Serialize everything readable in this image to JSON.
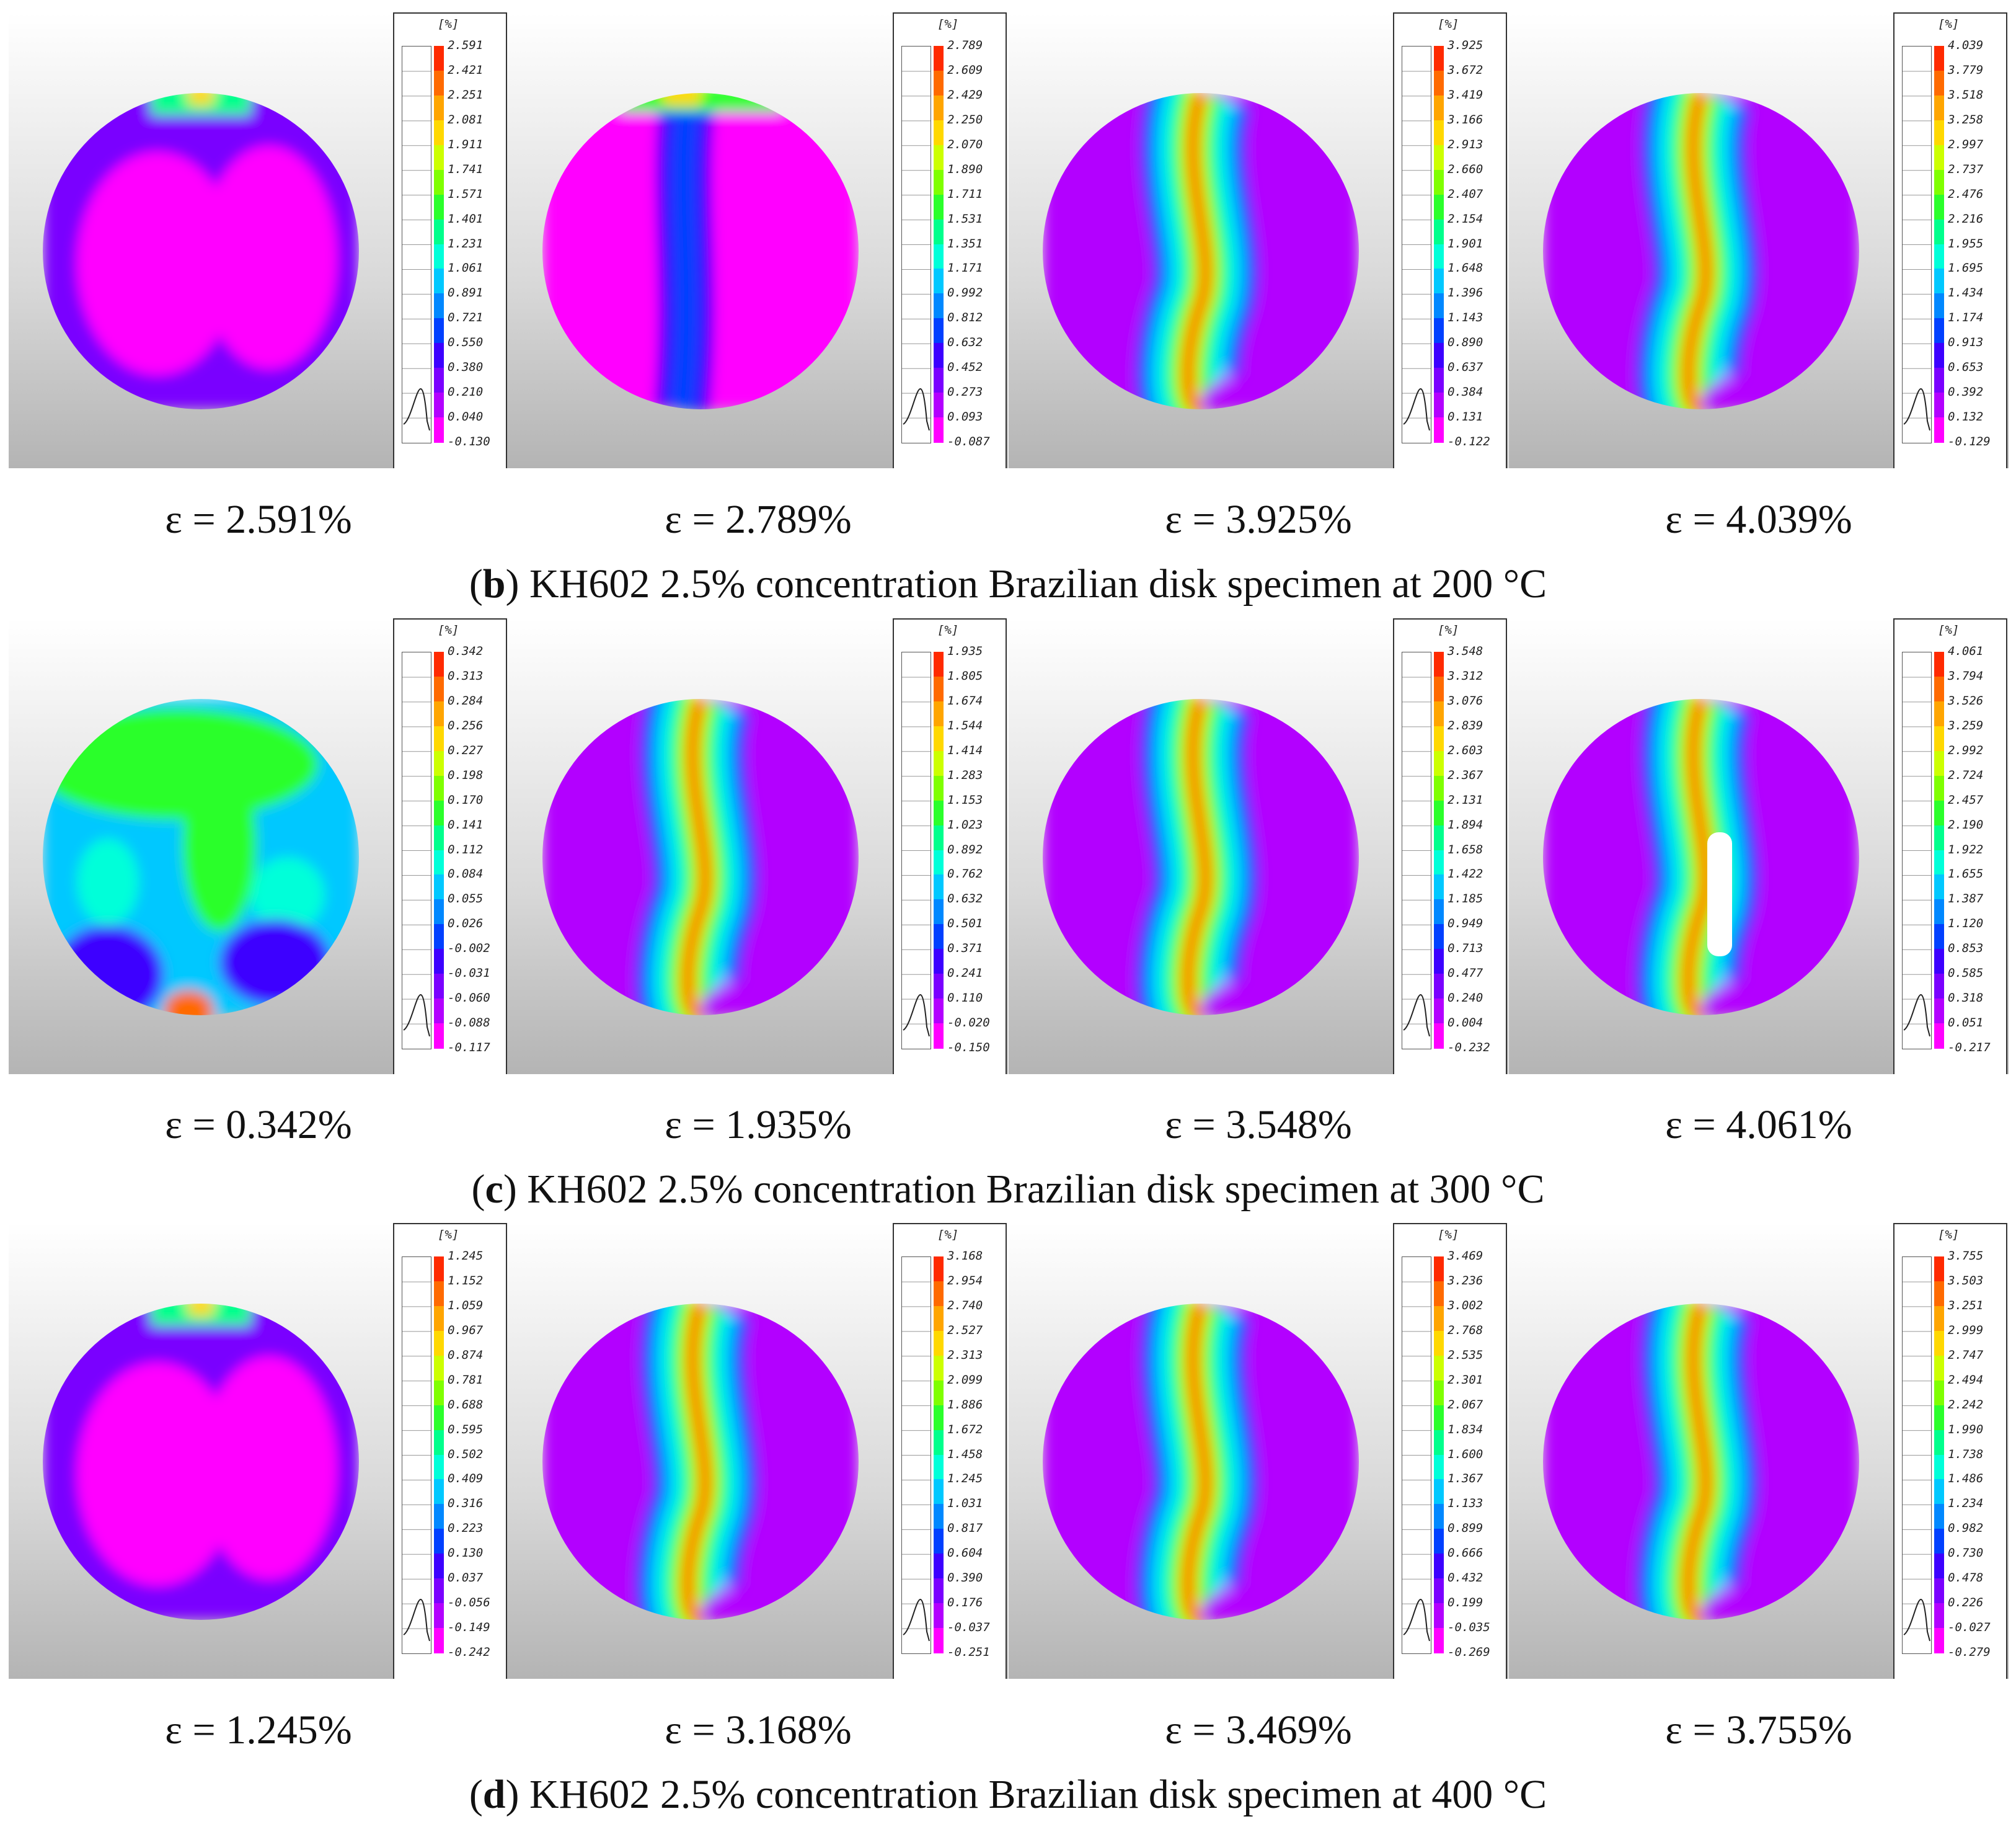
{
  "legend_colors": [
    "#ff2a00",
    "#ff6a00",
    "#ffa500",
    "#ffd800",
    "#ccff00",
    "#7fff00",
    "#2bff2b",
    "#00ff8c",
    "#00ffd9",
    "#00c8ff",
    "#0088ff",
    "#0040ff",
    "#3c00ff",
    "#7a00ff",
    "#b300ff",
    "#ff00ff"
  ],
  "rows": [
    {
      "id": "b",
      "caption_letter": "b",
      "caption_text": ") KH602 2.5% concentration Brazilian disk specimen at 200 °C",
      "panels": [
        {
          "strain_label": "ε = 2.591%",
          "unit": "[%]",
          "pattern": "low",
          "ticks": [
            "2.591",
            "2.421",
            "2.251",
            "2.081",
            "1.911",
            "1.741",
            "1.571",
            "1.401",
            "1.231",
            "1.061",
            "0.891",
            "0.721",
            "0.550",
            "0.380",
            "0.210",
            "0.040",
            "-0.130"
          ]
        },
        {
          "strain_label": "ε = 2.789%",
          "unit": "[%]",
          "pattern": "early",
          "ticks": [
            "2.789",
            "2.609",
            "2.429",
            "2.250",
            "2.070",
            "1.890",
            "1.711",
            "1.531",
            "1.351",
            "1.171",
            "0.992",
            "0.812",
            "0.632",
            "0.452",
            "0.273",
            "0.093",
            "-0.087"
          ]
        },
        {
          "strain_label": "ε = 3.925%",
          "unit": "[%]",
          "pattern": "band",
          "ticks": [
            "3.925",
            "3.672",
            "3.419",
            "3.166",
            "2.913",
            "2.660",
            "2.407",
            "2.154",
            "1.901",
            "1.648",
            "1.396",
            "1.143",
            "0.890",
            "0.637",
            "0.384",
            "0.131",
            "-0.122"
          ]
        },
        {
          "strain_label": "ε = 4.039%",
          "unit": "[%]",
          "pattern": "band",
          "ticks": [
            "4.039",
            "3.779",
            "3.518",
            "3.258",
            "2.997",
            "2.737",
            "2.476",
            "2.216",
            "1.955",
            "1.695",
            "1.434",
            "1.174",
            "0.913",
            "0.653",
            "0.392",
            "0.132",
            "-0.129"
          ]
        }
      ]
    },
    {
      "id": "c",
      "caption_letter": "c",
      "caption_text": ") KH602 2.5% concentration Brazilian disk specimen at 300 °C",
      "panels": [
        {
          "strain_label": "ε = 0.342%",
          "unit": "[%]",
          "pattern": "noisy",
          "ticks": [
            "0.342",
            "0.313",
            "0.284",
            "0.256",
            "0.227",
            "0.198",
            "0.170",
            "0.141",
            "0.112",
            "0.084",
            "0.055",
            "0.026",
            "-0.002",
            "-0.031",
            "-0.060",
            "-0.088",
            "-0.117"
          ]
        },
        {
          "strain_label": "ε = 1.935%",
          "unit": "[%]",
          "pattern": "band",
          "ticks": [
            "1.935",
            "1.805",
            "1.674",
            "1.544",
            "1.414",
            "1.283",
            "1.153",
            "1.023",
            "0.892",
            "0.762",
            "0.632",
            "0.501",
            "0.371",
            "0.241",
            "0.110",
            "-0.020",
            "-0.150"
          ]
        },
        {
          "strain_label": "ε = 3.548%",
          "unit": "[%]",
          "pattern": "band",
          "ticks": [
            "3.548",
            "3.312",
            "3.076",
            "2.839",
            "2.603",
            "2.367",
            "2.131",
            "1.894",
            "1.658",
            "1.422",
            "1.185",
            "0.949",
            "0.713",
            "0.477",
            "0.240",
            "0.004",
            "-0.232"
          ]
        },
        {
          "strain_label": "ε = 4.061%",
          "unit": "[%]",
          "pattern": "crack",
          "ticks": [
            "4.061",
            "3.794",
            "3.526",
            "3.259",
            "2.992",
            "2.724",
            "2.457",
            "2.190",
            "1.922",
            "1.655",
            "1.387",
            "1.120",
            "0.853",
            "0.585",
            "0.318",
            "0.051",
            "-0.217"
          ]
        }
      ]
    },
    {
      "id": "d",
      "caption_letter": "d",
      "caption_text": ") KH602 2.5% concentration Brazilian disk specimen at 400 °C",
      "panels": [
        {
          "strain_label": "ε = 1.245%",
          "unit": "[%]",
          "pattern": "low",
          "ticks": [
            "1.245",
            "1.152",
            "1.059",
            "0.967",
            "0.874",
            "0.781",
            "0.688",
            "0.595",
            "0.502",
            "0.409",
            "0.316",
            "0.223",
            "0.130",
            "0.037",
            "-0.056",
            "-0.149",
            "-0.242"
          ]
        },
        {
          "strain_label": "ε = 3.168%",
          "unit": "[%]",
          "pattern": "band",
          "ticks": [
            "3.168",
            "2.954",
            "2.740",
            "2.527",
            "2.313",
            "2.099",
            "1.886",
            "1.672",
            "1.458",
            "1.245",
            "1.031",
            "0.817",
            "0.604",
            "0.390",
            "0.176",
            "-0.037",
            "-0.251"
          ]
        },
        {
          "strain_label": "ε = 3.469%",
          "unit": "[%]",
          "pattern": "band",
          "ticks": [
            "3.469",
            "3.236",
            "3.002",
            "2.768",
            "2.535",
            "2.301",
            "2.067",
            "1.834",
            "1.600",
            "1.367",
            "1.133",
            "0.899",
            "0.666",
            "0.432",
            "0.199",
            "-0.035",
            "-0.269"
          ]
        },
        {
          "strain_label": "ε = 3.755%",
          "unit": "[%]",
          "pattern": "band",
          "ticks": [
            "3.755",
            "3.503",
            "3.251",
            "2.999",
            "2.747",
            "2.494",
            "2.242",
            "1.990",
            "1.738",
            "1.486",
            "1.234",
            "0.982",
            "0.730",
            "0.478",
            "0.226",
            "-0.027",
            "-0.279"
          ]
        }
      ]
    }
  ]
}
